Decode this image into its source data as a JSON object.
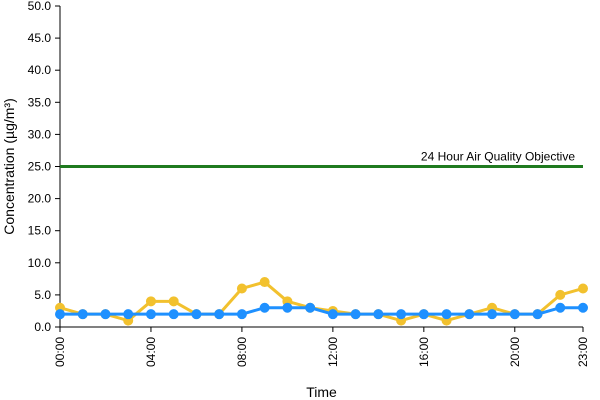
{
  "chart_data": {
    "type": "line",
    "xlabel": "Time",
    "ylabel": "Concentration (µg/m³)",
    "ylim": [
      0,
      50
    ],
    "y_ticks": [
      "0.0",
      "5.0",
      "10.0",
      "15.0",
      "20.0",
      "25.0",
      "30.0",
      "35.0",
      "40.0",
      "45.0",
      "50.0"
    ],
    "x_tick_labels": [
      {
        "hour": 0,
        "label": "00:00"
      },
      {
        "hour": 4,
        "label": "04:00"
      },
      {
        "hour": 8,
        "label": "08:00"
      },
      {
        "hour": 12,
        "label": "12:00"
      },
      {
        "hour": 16,
        "label": "16:00"
      },
      {
        "hour": 20,
        "label": "20:00"
      },
      {
        "hour": 23,
        "label": "23:00"
      }
    ],
    "x": [
      0,
      1,
      2,
      3,
      4,
      5,
      6,
      7,
      8,
      9,
      10,
      11,
      12,
      13,
      14,
      15,
      16,
      17,
      18,
      19,
      20,
      21,
      22,
      23
    ],
    "grid": false,
    "series": [
      {
        "color": "#f2c12e",
        "values": [
          3,
          2,
          2,
          1,
          4,
          4,
          2,
          2,
          6,
          7,
          4,
          3,
          2.5,
          2,
          2,
          1,
          2,
          1,
          2,
          3,
          2,
          2,
          5,
          6
        ]
      },
      {
        "color": "#1e90ff",
        "values": [
          2,
          2,
          2,
          2,
          2,
          2,
          2,
          2,
          2,
          3,
          3,
          3,
          2,
          2,
          2,
          2,
          2,
          2,
          2,
          2,
          2,
          2,
          3,
          3
        ]
      }
    ],
    "reference_line": {
      "label": "24 Hour Air Quality Objective",
      "value": 25,
      "color": "#1f7a1f"
    }
  }
}
